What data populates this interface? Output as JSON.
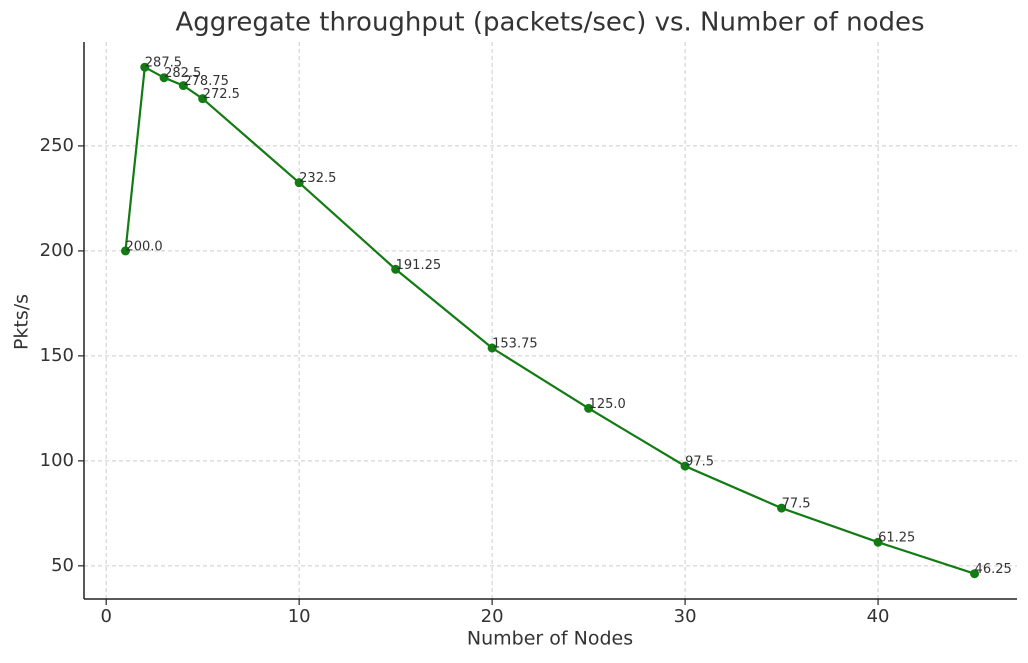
{
  "chart_data": {
    "type": "line",
    "title": "Aggregate throughput (packets/sec) vs. Number of nodes",
    "x_label": "Number of Nodes",
    "y_label": "Pkts/s",
    "x": [
      1,
      2,
      3,
      4,
      5,
      10,
      15,
      20,
      25,
      30,
      35,
      40,
      45
    ],
    "values": [
      200,
      287.5,
      282.5,
      278.75,
      272.5,
      232.5,
      191.25,
      153.75,
      125,
      97.5,
      77.5,
      61.25,
      46.25
    ],
    "value_labels": [
      "200.0",
      "287.5",
      "282.5",
      "278.75",
      "272.5",
      "232.5",
      "191.25",
      "153.75",
      "125.0",
      "97.5",
      "77.5",
      "61.25",
      "46.25"
    ],
    "color": "#137b13",
    "xlim": [
      -1.15,
      47.2
    ],
    "ylim": [
      34.2,
      299.5
    ],
    "xticks": [
      0,
      10,
      20,
      30,
      40
    ],
    "yticks": [
      50,
      100,
      150,
      200,
      250
    ],
    "grid": true
  }
}
